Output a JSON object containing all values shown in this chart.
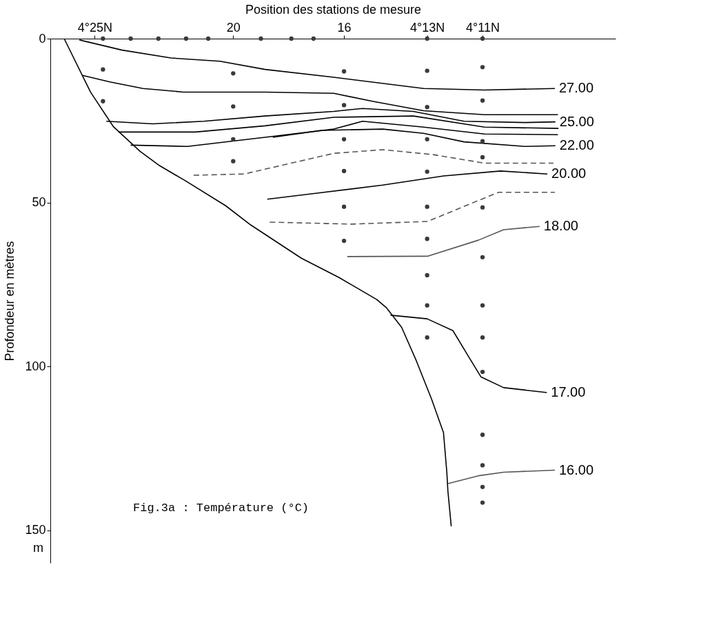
{
  "chart_data": {
    "type": "line",
    "xlabel": "Position des stations de mesure",
    "ylabel": "Profondeur en mètres",
    "annotations": [
      "Fig.3a : Température (°C)",
      "m"
    ],
    "xlim": [
      26.6,
      6.2
    ],
    "xticks": [
      {
        "value": 25,
        "label": "4°25N"
      },
      20,
      16,
      {
        "value": 13,
        "label": "4°13N"
      },
      {
        "value": 11,
        "label": "4°11N"
      }
    ],
    "ylim": [
      160,
      0
    ],
    "yticks": [
      0,
      50,
      100,
      150
    ],
    "grid": false,
    "series": [
      {
        "name": "27.00",
        "color": "#000000",
        "x": [
          25.55,
          24.01,
          22.25,
          20.48,
          18.85,
          16.37,
          13.13,
          10.93,
          8.39
        ],
        "values": [
          0.4,
          3.5,
          5.9,
          6.9,
          9.4,
          11.8,
          15.2,
          15.7,
          15.2
        ]
      },
      {
        "color": "#000000",
        "x": [
          25.44,
          24.45,
          23.26,
          21.81,
          18.85,
          16.37,
          14.98,
          13.13,
          10.93,
          8.28
        ],
        "values": [
          11.2,
          13.2,
          15.2,
          16.3,
          16.3,
          16.7,
          19.1,
          22.0,
          23.2,
          23.2
        ]
      },
      {
        "name": "25.00",
        "color": "#000000",
        "x": [
          24.58,
          22.91,
          21.06,
          18.85,
          16.37,
          15.33,
          13.5,
          11.67,
          9.47,
          8.37
        ],
        "values": [
          25.2,
          26.0,
          25.2,
          23.6,
          22.2,
          21.3,
          22.2,
          25.2,
          25.6,
          25.4
        ]
      },
      {
        "color": "#000000",
        "x": [
          24.14,
          21.37,
          18.85,
          16.37,
          13.5,
          10.93,
          8.26
        ],
        "values": [
          28.5,
          28.5,
          26.6,
          24.0,
          23.6,
          27.0,
          27.4
        ]
      },
      {
        "color": "#000000",
        "x": [
          23.7,
          21.65,
          18.85,
          16.37,
          15.33,
          13.13,
          10.93,
          8.28
        ],
        "values": [
          32.5,
          32.9,
          30.1,
          27.6,
          25.2,
          27.0,
          29.1,
          29.3
        ]
      },
      {
        "name": "22.00",
        "color": "#000000",
        "x": [
          18.57,
          16.81,
          14.6,
          13.13,
          11.67,
          9.47,
          8.37
        ],
        "values": [
          30.1,
          28.0,
          27.6,
          28.9,
          31.5,
          32.9,
          32.7
        ]
      },
      {
        "color": "#555555",
        "line_style": "dashed",
        "x": [
          21.43,
          19.6,
          16.37,
          14.6,
          12.78,
          10.93,
          8.44
        ],
        "values": [
          41.7,
          41.3,
          35.0,
          33.9,
          35.4,
          38.0,
          38.0
        ]
      },
      {
        "name": "20.00",
        "color": "#000000",
        "x": [
          18.77,
          17.03,
          14.6,
          12.4,
          10.35,
          8.66
        ],
        "values": [
          49.0,
          47.2,
          44.7,
          41.9,
          40.4,
          41.3
        ]
      },
      {
        "color": "#555555",
        "line_style": "dashed",
        "x": [
          18.68,
          15.75,
          12.99,
          11.15,
          10.42,
          8.39
        ],
        "values": [
          56.0,
          56.6,
          55.8,
          49.4,
          46.9,
          46.9
        ]
      },
      {
        "name": "18.00",
        "color": "#555555",
        "x": [
          15.88,
          12.99,
          11.15,
          10.24,
          8.94
        ],
        "values": [
          66.5,
          66.4,
          61.5,
          58.3,
          57.3
        ]
      },
      {
        "name": "17.00",
        "color": "#000000",
        "x": [
          14.32,
          13.0,
          12.07,
          11.52,
          11.06,
          10.24,
          8.68
        ],
        "values": [
          84.4,
          85.5,
          89.1,
          96.8,
          103.2,
          106.5,
          108.0
        ]
      },
      {
        "name": "16.00",
        "color": "#555555",
        "x": [
          12.25,
          11.15,
          10.24,
          8.39
        ],
        "values": [
          135.8,
          133.4,
          132.3,
          131.7
        ]
      },
      {
        "color": "#000000",
        "x": [
          26.1,
          25.15,
          24.33,
          23.36,
          22.65,
          21.74,
          20.27,
          19.36,
          17.54,
          16.18,
          14.82,
          14.46,
          13.92,
          13.39,
          12.84,
          12.41,
          12.29,
          12.25,
          12.13
        ],
        "values": [
          0,
          16.3,
          26.8,
          34.4,
          38.8,
          43.3,
          51.0,
          56.9,
          67.0,
          72.9,
          79.6,
          82.2,
          88.1,
          98.3,
          110.0,
          120.2,
          132.2,
          138.1,
          148.8
        ]
      },
      {
        "type": "scatter",
        "marker": "circle",
        "color": "#3a3a3a",
        "x": [
          24.7,
          23.7,
          22.7,
          21.7,
          20.9,
          19.0,
          17.9,
          17.1,
          13.0,
          11.0,
          24.7,
          24.7,
          20,
          20,
          20,
          20,
          16,
          16,
          16,
          16,
          16,
          16,
          13,
          13,
          13,
          13,
          13,
          13,
          13,
          13,
          13,
          11,
          11,
          11,
          11,
          11,
          11,
          11,
          11,
          11,
          11,
          11,
          11,
          11
        ],
        "values": [
          0,
          0,
          0,
          0,
          0,
          0,
          0,
          0,
          0,
          0,
          9.4,
          19.1,
          10.6,
          20.7,
          30.7,
          37.4,
          10.0,
          20.3,
          30.7,
          40.4,
          51.3,
          61.7,
          9.8,
          20.9,
          30.7,
          40.6,
          51.3,
          61.1,
          72.2,
          81.4,
          91.2,
          8.7,
          18.9,
          31.3,
          36.2,
          51.5,
          66.7,
          81.4,
          91.2,
          101.7,
          120.9,
          130.2,
          136.8,
          141.6
        ]
      }
    ]
  }
}
